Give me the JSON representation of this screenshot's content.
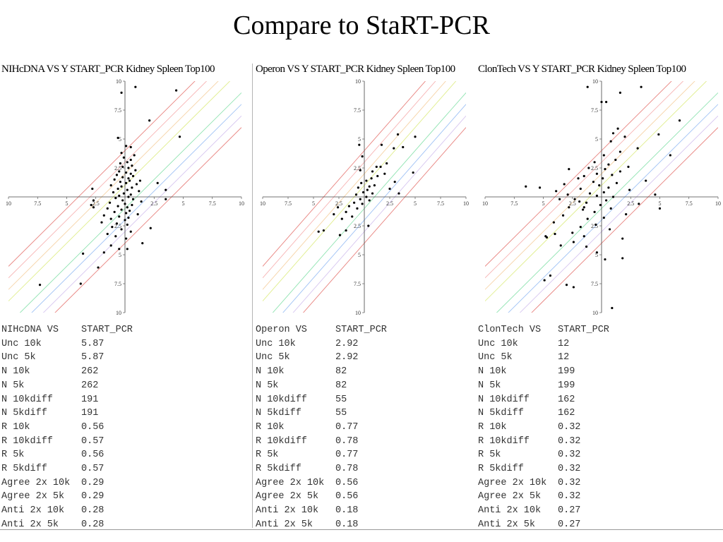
{
  "slide": {
    "title": "Compare to StaRT-PCR"
  },
  "chart_data": [
    {
      "type": "scatter",
      "title": "NIHcDNA VS  Y START_PCR Kidney Spleen Top100",
      "x_ticks": [
        "10",
        "7.5",
        "5",
        "2.5",
        "",
        "2.5",
        "5",
        "7.5",
        "10"
      ],
      "y_ticks": [
        "10",
        "7.5",
        "5",
        "2.5",
        "",
        "2.5",
        "5",
        "7.5",
        "10"
      ],
      "xlim": [
        -10,
        10
      ],
      "ylim": [
        -10,
        10
      ],
      "diagonal_offsets": [
        -4,
        -3,
        -2,
        -1,
        1,
        2,
        3,
        4
      ],
      "diagonal_colors": [
        "#e8837f",
        "#d7c6f0",
        "#9fc2f5",
        "#8ee3b0",
        "#e0ee8c",
        "#f6d3a6",
        "#f7b4b4",
        "#e8837f"
      ],
      "points": [
        [
          -0.3,
          9
        ],
        [
          0.9,
          9.5
        ],
        [
          4.4,
          9.2
        ],
        [
          2.1,
          6.6
        ],
        [
          4.7,
          5.2
        ],
        [
          -0.6,
          5.1
        ],
        [
          0.1,
          4.4
        ],
        [
          0.5,
          4.3
        ],
        [
          -0.3,
          3.8
        ],
        [
          0.8,
          3.6
        ],
        [
          -0.1,
          3.4
        ],
        [
          0.5,
          3.2
        ],
        [
          0.2,
          3
        ],
        [
          -0.4,
          2.9
        ],
        [
          0.6,
          2.7
        ],
        [
          -0.2,
          2.6
        ],
        [
          0.3,
          2.5
        ],
        [
          0.9,
          2.3
        ],
        [
          -0.5,
          2.2
        ],
        [
          0.1,
          2.1
        ],
        [
          0.5,
          2
        ],
        [
          -0.7,
          1.9
        ],
        [
          0.7,
          1.8
        ],
        [
          -0.2,
          1.7
        ],
        [
          0.3,
          1.6
        ],
        [
          -0.9,
          1.5
        ],
        [
          0.4,
          1.4
        ],
        [
          -0.4,
          1.3
        ],
        [
          0.1,
          1.2
        ],
        [
          1,
          1.1
        ],
        [
          -1.2,
          1
        ],
        [
          -0.3,
          0.9
        ],
        [
          0.6,
          0.8
        ],
        [
          -0.6,
          0.7
        ],
        [
          0.2,
          0.6
        ],
        [
          1.2,
          0.5
        ],
        [
          -1,
          0.4
        ],
        [
          -0.1,
          0.3
        ],
        [
          0.5,
          0.2
        ],
        [
          -0.5,
          0.1
        ],
        [
          0.3,
          0
        ],
        [
          -0.8,
          -0.1
        ],
        [
          0.7,
          -0.2
        ],
        [
          -0.2,
          -0.3
        ],
        [
          1.4,
          -0.4
        ],
        [
          -1.3,
          -0.5
        ],
        [
          0,
          -0.6
        ],
        [
          0.6,
          -0.7
        ],
        [
          -0.6,
          -0.8
        ],
        [
          0.2,
          -0.9
        ],
        [
          -1.5,
          -1
        ],
        [
          -0.3,
          -1.1
        ],
        [
          0.4,
          -1.2
        ],
        [
          -0.9,
          -1.3
        ],
        [
          0.1,
          -1.4
        ],
        [
          1.1,
          -1.5
        ],
        [
          -1.8,
          -1.6
        ],
        [
          -0.5,
          -1.7
        ],
        [
          0.3,
          -1.8
        ],
        [
          -1.2,
          -1.9
        ],
        [
          0,
          -2
        ],
        [
          -2,
          -2.2
        ],
        [
          -0.7,
          -2.3
        ],
        [
          0.2,
          -2.4
        ],
        [
          -1.1,
          -2.6
        ],
        [
          -0.3,
          -2.8
        ],
        [
          0.5,
          -3
        ],
        [
          -1.5,
          -3.2
        ],
        [
          -0.8,
          -3.4
        ],
        [
          0.1,
          -3.6
        ],
        [
          -1.2,
          -4.2
        ],
        [
          -0.5,
          -4.5
        ],
        [
          -1.8,
          -4.8
        ],
        [
          -3.6,
          -4.9
        ],
        [
          -2.3,
          -6.1
        ],
        [
          0.2,
          -4.5
        ],
        [
          1.5,
          -4
        ],
        [
          2.2,
          -2.7
        ],
        [
          3.5,
          -0.2
        ],
        [
          3.5,
          0.6
        ],
        [
          1.3,
          1.4
        ],
        [
          2.8,
          1.2
        ],
        [
          -2.9,
          -0.7
        ],
        [
          -2.7,
          -0.9
        ],
        [
          -2.8,
          0.7
        ],
        [
          -2.7,
          -0.3
        ],
        [
          -7.3,
          -7.6
        ],
        [
          -3.8,
          -7.5
        ]
      ]
    },
    {
      "type": "scatter",
      "title": "Operon VS  Y START_PCR Kidney Spleen Top100",
      "x_ticks": [
        "10",
        "7.5",
        "5",
        "2.5",
        "",
        "2.5",
        "5",
        "7.5",
        "10"
      ],
      "y_ticks": [
        "10",
        "7.5",
        "5",
        "2.5",
        "",
        "2.5",
        "5",
        "7.5",
        "10"
      ],
      "xlim": [
        -10,
        10
      ],
      "ylim": [
        -10,
        10
      ],
      "diagonal_offsets": [
        -4,
        -3,
        -2,
        -1,
        1,
        2,
        3,
        4
      ],
      "diagonal_colors": [
        "#e8837f",
        "#d7c6f0",
        "#9fc2f5",
        "#8ee3b0",
        "#e0ee8c",
        "#f6d3a6",
        "#f7b4b4",
        "#e8837f"
      ],
      "points": [
        [
          3.3,
          5.4
        ],
        [
          5,
          5.2
        ],
        [
          1.7,
          4.5
        ],
        [
          -0.5,
          4.5
        ],
        [
          2.9,
          4.2
        ],
        [
          2.2,
          2.9
        ],
        [
          1.6,
          2.6
        ],
        [
          0.8,
          2.2
        ],
        [
          -0.4,
          2.3
        ],
        [
          2,
          2
        ],
        [
          1.3,
          1.8
        ],
        [
          0.7,
          1.6
        ],
        [
          0.2,
          1.4
        ],
        [
          -0.3,
          1.2
        ],
        [
          1,
          1
        ],
        [
          0.5,
          0.9
        ],
        [
          -0.6,
          0.8
        ],
        [
          0.3,
          0.6
        ],
        [
          -0.1,
          0.4
        ],
        [
          0.8,
          0.3
        ],
        [
          -0.8,
          0.2
        ],
        [
          0.2,
          0
        ],
        [
          -0.4,
          -0.2
        ],
        [
          0.5,
          -0.3
        ],
        [
          -1,
          -0.5
        ],
        [
          -0.2,
          -0.6
        ],
        [
          -1.5,
          -0.8
        ],
        [
          -2.6,
          -0.9
        ],
        [
          -0.7,
          -1
        ],
        [
          -1.8,
          -1.3
        ],
        [
          -3,
          -1.5
        ],
        [
          -1.2,
          -1.7
        ],
        [
          -2.2,
          -1.9
        ],
        [
          0.4,
          -2.5
        ],
        [
          -4,
          -2.9
        ],
        [
          -4.5,
          -3
        ],
        [
          -1.8,
          -2.9
        ],
        [
          -2.4,
          -3.3
        ],
        [
          3.8,
          4.3
        ],
        [
          3.4,
          0.3
        ],
        [
          2.5,
          0.7
        ],
        [
          3,
          1.3
        ],
        [
          4.8,
          2.1
        ],
        [
          1.2,
          2.6
        ],
        [
          -0.2,
          3.5
        ]
      ]
    },
    {
      "type": "scatter",
      "title": "ClonTech VS  Y START_PCR Kidney Spleen Top100",
      "x_ticks": [
        "10",
        "7.5",
        "5",
        "2.5",
        "",
        "2.5",
        "5",
        "7.5",
        "10"
      ],
      "y_ticks": [
        "10",
        "7.5",
        "5",
        "2.5",
        "",
        "2.5",
        "5",
        "7.5",
        "10"
      ],
      "xlim": [
        -10,
        10
      ],
      "ylim": [
        -10,
        10
      ],
      "diagonal_offsets": [
        -4,
        -3,
        -2,
        -1,
        1,
        2,
        3,
        4
      ],
      "diagonal_colors": [
        "#e8837f",
        "#d7c6f0",
        "#9fc2f5",
        "#8ee3b0",
        "#e0ee8c",
        "#f6d3a6",
        "#f7b4b4",
        "#e8837f"
      ],
      "points": [
        [
          -1.2,
          9.5
        ],
        [
          1.6,
          9
        ],
        [
          3.4,
          9.5
        ],
        [
          0,
          8.2
        ],
        [
          0.4,
          8.2
        ],
        [
          6.7,
          6.6
        ],
        [
          1.4,
          5.9
        ],
        [
          1,
          5.5
        ],
        [
          4.9,
          5.4
        ],
        [
          2,
          5.2
        ],
        [
          0.8,
          4.8
        ],
        [
          3.1,
          4.2
        ],
        [
          1.6,
          3.9
        ],
        [
          0.2,
          3.6
        ],
        [
          5.9,
          3.6
        ],
        [
          1.2,
          3.2
        ],
        [
          -0.6,
          3
        ],
        [
          0.6,
          2.8
        ],
        [
          2.3,
          2.6
        ],
        [
          -1.1,
          2.5
        ],
        [
          0.3,
          2.4
        ],
        [
          1.6,
          2.2
        ],
        [
          -0.4,
          2
        ],
        [
          0.9,
          1.9
        ],
        [
          -1.5,
          1.8
        ],
        [
          0.1,
          1.6
        ],
        [
          3.8,
          1.4
        ],
        [
          -0.7,
          1.3
        ],
        [
          1.3,
          1.2
        ],
        [
          -0.2,
          1
        ],
        [
          0.6,
          0.8
        ],
        [
          -1.8,
          0.7
        ],
        [
          2.4,
          0.6
        ],
        [
          0.2,
          0.4
        ],
        [
          -1,
          0.3
        ],
        [
          4.6,
          0.2
        ],
        [
          -0.4,
          0.1
        ],
        [
          1,
          0
        ],
        [
          -2.3,
          -0.2
        ],
        [
          0.4,
          -0.3
        ],
        [
          -1.3,
          -0.5
        ],
        [
          3.2,
          -0.6
        ],
        [
          -0.1,
          -0.7
        ],
        [
          -2.8,
          -0.9
        ],
        [
          0.8,
          -1
        ],
        [
          -1.6,
          -1.1
        ],
        [
          -0.6,
          -1.3
        ],
        [
          2.1,
          -1.5
        ],
        [
          -3.3,
          -1.6
        ],
        [
          0.2,
          -1.8
        ],
        [
          -1.2,
          -1.9
        ],
        [
          -4.1,
          -2.2
        ],
        [
          -0.5,
          -2.4
        ],
        [
          -1.8,
          -2.6
        ],
        [
          0.7,
          -2.8
        ],
        [
          -2.5,
          -3.1
        ],
        [
          -1.5,
          -3.4
        ],
        [
          -4,
          -3.2
        ],
        [
          -4.7,
          -3.5
        ],
        [
          1.8,
          -3.6
        ],
        [
          -2.4,
          -3.9
        ],
        [
          -1.3,
          -4.3
        ],
        [
          -0.4,
          -4.8
        ],
        [
          0.3,
          -5.4
        ],
        [
          1.8,
          -5.3
        ],
        [
          -4.4,
          -6.8
        ],
        [
          -4.9,
          -7.2
        ],
        [
          -2.4,
          -7.8
        ],
        [
          -3,
          -7.6
        ],
        [
          0.9,
          -9.6
        ],
        [
          5,
          -1
        ],
        [
          -6.5,
          0.9
        ],
        [
          -5.3,
          0.8
        ],
        [
          -3.6,
          -0.2
        ],
        [
          -3.9,
          0.5
        ],
        [
          -3.2,
          1.1
        ],
        [
          -2,
          1.6
        ],
        [
          -2.8,
          2.4
        ],
        [
          -2.9,
          0.2
        ],
        [
          -1.9,
          -0.4
        ],
        [
          -1.5,
          -0.9
        ],
        [
          -4.8,
          -3.4
        ],
        [
          -3.5,
          -4.2
        ]
      ]
    }
  ],
  "stats": [
    {
      "header": [
        "NIHcDNA VS",
        "START_PCR"
      ],
      "rows": [
        [
          "Unc 10k",
          "5.87"
        ],
        [
          "Unc 5k",
          "5.87"
        ],
        [
          "N 10k",
          "262"
        ],
        [
          "N 5k",
          "262"
        ],
        [
          "N 10kdiff",
          "191"
        ],
        [
          "N 5kdiff",
          "191"
        ],
        [
          "R 10k",
          "0.56"
        ],
        [
          "R 10kdiff",
          "0.57"
        ],
        [
          "R 5k",
          "0.56"
        ],
        [
          "R 5kdiff",
          "0.57"
        ],
        [
          "Agree 2x 10k",
          "0.29"
        ],
        [
          "Agree 2x 5k",
          "0.29"
        ],
        [
          "Anti 2x 10k",
          "0.28"
        ],
        [
          "Anti 2x 5k",
          "0.28"
        ]
      ]
    },
    {
      "header": [
        "Operon VS",
        "START_PCR"
      ],
      "rows": [
        [
          "Unc 10k",
          "2.92"
        ],
        [
          "Unc 5k",
          "2.92"
        ],
        [
          "N 10k",
          "82"
        ],
        [
          "N 5k",
          "82"
        ],
        [
          "N 10kdiff",
          "55"
        ],
        [
          "N 5kdiff",
          "55"
        ],
        [
          "R 10k",
          "0.77"
        ],
        [
          "R 10kdiff",
          "0.78"
        ],
        [
          "R 5k",
          "0.77"
        ],
        [
          "R 5kdiff",
          "0.78"
        ],
        [
          "Agree 2x 10k",
          "0.56"
        ],
        [
          "Agree 2x 5k",
          "0.56"
        ],
        [
          "Anti 2x 10k",
          "0.18"
        ],
        [
          "Anti 2x 5k",
          "0.18"
        ]
      ]
    },
    {
      "header": [
        "ClonTech VS",
        "START_PCR"
      ],
      "rows": [
        [
          "Unc 10k",
          "12"
        ],
        [
          "Unc 5k",
          "12"
        ],
        [
          "N 10k",
          "199"
        ],
        [
          "N 5k",
          "199"
        ],
        [
          "N 10kdiff",
          "162"
        ],
        [
          "N 5kdiff",
          "162"
        ],
        [
          "R 10k",
          "0.32"
        ],
        [
          "R 10kdiff",
          "0.32"
        ],
        [
          "R 5k",
          "0.32"
        ],
        [
          "R 5kdiff",
          "0.32"
        ],
        [
          "Agree 2x 10k",
          "0.32"
        ],
        [
          "Agree 2x 5k",
          "0.32"
        ],
        [
          "Anti 2x 10k",
          "0.27"
        ],
        [
          "Anti 2x 5k",
          "0.27"
        ]
      ]
    }
  ]
}
